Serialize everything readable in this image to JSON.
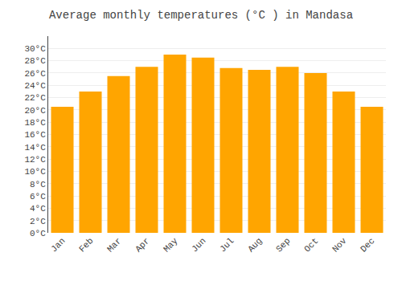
{
  "chart_data": {
    "type": "bar",
    "title": "Average monthly temperatures (°C ) in Mandasa",
    "categories": [
      "Jan",
      "Feb",
      "Mar",
      "Apr",
      "May",
      "Jun",
      "Jul",
      "Aug",
      "Sep",
      "Oct",
      "Nov",
      "Dec"
    ],
    "values": [
      20.5,
      23.0,
      25.5,
      27.0,
      29.0,
      28.5,
      26.8,
      26.5,
      27.0,
      26.0,
      23.0,
      20.5
    ],
    "color": "#FFA500",
    "ylim": [
      0,
      32
    ],
    "yticks": [
      {
        "value": 0,
        "label": "0°C"
      },
      {
        "value": 2,
        "label": "2°C"
      },
      {
        "value": 4,
        "label": "4°C"
      },
      {
        "value": 6,
        "label": "6°C"
      },
      {
        "value": 8,
        "label": "8°C"
      },
      {
        "value": 10,
        "label": "10°C"
      },
      {
        "value": 12,
        "label": "12°C"
      },
      {
        "value": 14,
        "label": "14°C"
      },
      {
        "value": 16,
        "label": "16°C"
      },
      {
        "value": 18,
        "label": "18°C"
      },
      {
        "value": 20,
        "label": "20°C"
      },
      {
        "value": 22,
        "label": "22°C"
      },
      {
        "value": 24,
        "label": "24°C"
      },
      {
        "value": 26,
        "label": "26°C"
      },
      {
        "value": 28,
        "label": "28°C"
      },
      {
        "value": 30,
        "label": "30°C"
      }
    ],
    "grid": true
  }
}
